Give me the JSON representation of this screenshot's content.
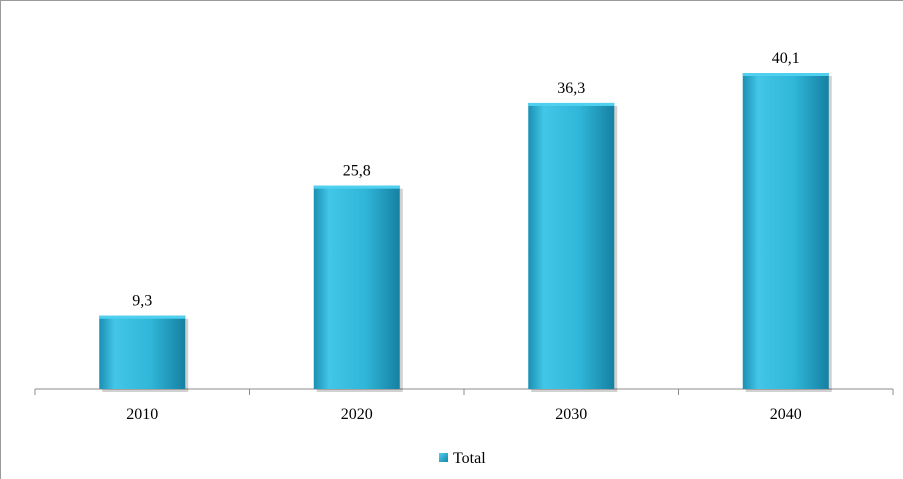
{
  "chart_data": {
    "type": "bar",
    "categories": [
      "2010",
      "2020",
      "2030",
      "2040"
    ],
    "series": [
      {
        "name": "Total",
        "values": [
          9.3,
          25.8,
          36.3,
          40.1
        ]
      }
    ],
    "data_labels": [
      "9,3",
      "25,8",
      "36,3",
      "40,1"
    ],
    "ylim": [
      0,
      40.1
    ],
    "grid": false,
    "legend_position": "bottom",
    "colors": {
      "bar_light": "#4fd0ef",
      "bar_main": "#2fb6d8",
      "bar_dark": "#1686a8",
      "axis": "#8c8c8c"
    }
  }
}
